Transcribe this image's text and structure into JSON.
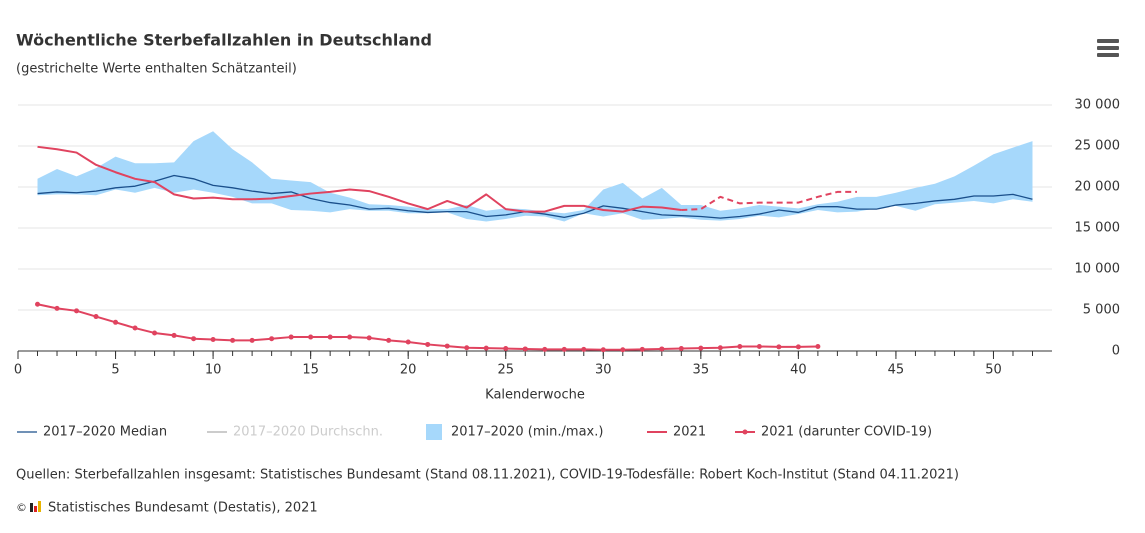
{
  "chart_data": {
    "type": "line",
    "title": "Wöchentliche Sterbefallzahlen in Deutschland",
    "subtitle": "(gestrichelte Werte enthalten Schätzanteil)",
    "xlabel": "Kalenderwoche",
    "source": "Quellen: Sterbefallzahlen insgesamt: Statistisches Bundesamt (Stand 08.11.2021), COVID-19-Todesfälle: Robert Koch-Institut (Stand 04.11.2021)",
    "copyright_symbol": "©",
    "copyright": "Statistisches Bundesamt (Destatis), 2021",
    "x": [
      1,
      2,
      3,
      4,
      5,
      6,
      7,
      8,
      9,
      10,
      11,
      12,
      13,
      14,
      15,
      16,
      17,
      18,
      19,
      20,
      21,
      22,
      23,
      24,
      25,
      26,
      27,
      28,
      29,
      30,
      31,
      32,
      33,
      34,
      35,
      36,
      37,
      38,
      39,
      40,
      41,
      42,
      43,
      44,
      45,
      46,
      47,
      48,
      49,
      50,
      51,
      52
    ],
    "xlim": [
      0,
      53
    ],
    "xticks": [
      0,
      5,
      10,
      15,
      20,
      25,
      30,
      35,
      40,
      45,
      50
    ],
    "ylim": [
      0,
      30000
    ],
    "yticks": [
      0,
      {
        "value": 5000,
        "label": "5 000"
      },
      {
        "value": 10000,
        "label": "10 000"
      },
      {
        "value": 15000,
        "label": "15 000"
      },
      {
        "value": 20000,
        "label": "20 000"
      },
      {
        "value": 25000,
        "label": "25 000"
      },
      {
        "value": 30000,
        "label": "30 000"
      }
    ],
    "grid": true,
    "series": [
      {
        "name": "2017–2020 Median",
        "color": "#1a4f8b",
        "kind": "line",
        "values": [
          19200,
          19400,
          19300,
          19500,
          19900,
          20100,
          20700,
          21400,
          21000,
          20200,
          19900,
          19500,
          19200,
          19400,
          18600,
          18100,
          17800,
          17300,
          17400,
          17100,
          16900,
          17000,
          17000,
          16400,
          16600,
          17000,
          16700,
          16300,
          16800,
          17700,
          17400,
          17000,
          16600,
          16500,
          16400,
          16200,
          16400,
          16700,
          17200,
          16900,
          17600,
          17600,
          17300,
          17300,
          17800,
          18000,
          18300,
          18500,
          18900,
          18900,
          19100,
          18500
        ]
      },
      {
        "name": "2017–2020 Durchschn.",
        "color": "#cccccc",
        "visible": false
      },
      {
        "name": "2017–2020 (min./max.)",
        "color": "#a6d8fb",
        "kind": "range",
        "high": [
          21000,
          22200,
          21300,
          22300,
          23700,
          22900,
          22900,
          23000,
          25600,
          26800,
          24600,
          23000,
          21000,
          20800,
          20600,
          19300,
          18700,
          17900,
          17800,
          17600,
          17300,
          17300,
          17800,
          17100,
          17400,
          17300,
          17000,
          16800,
          17200,
          19700,
          20500,
          18600,
          19900,
          17800,
          17800,
          17100,
          17400,
          17800,
          17600,
          17400,
          17900,
          18200,
          18800,
          18800,
          19300,
          19900,
          20400,
          21300,
          22600,
          24000,
          24800,
          25600
        ],
        "low": [
          19000,
          19100,
          19100,
          19000,
          19700,
          19300,
          19900,
          19300,
          19700,
          19300,
          18800,
          18000,
          18000,
          17200,
          17100,
          16900,
          17300,
          17100,
          17100,
          16800,
          16800,
          16900,
          16100,
          15800,
          16100,
          16500,
          16400,
          15800,
          16800,
          16400,
          16800,
          16000,
          16100,
          16300,
          16000,
          15900,
          16100,
          16500,
          16300,
          16700,
          17200,
          16900,
          17000,
          17400,
          17700,
          17100,
          17900,
          18100,
          18300,
          18000,
          18500,
          18200
        ]
      },
      {
        "name": "2021",
        "color": "#e0435f",
        "kind": "line",
        "dashed_from_x": 34,
        "values": [
          24900,
          24600,
          24200,
          22700,
          21800,
          21000,
          20600,
          19100,
          18600,
          18700,
          18500,
          18500,
          18600,
          18900,
          19200,
          19400,
          19700,
          19500,
          18800,
          18000,
          17300,
          18300,
          17500,
          19100,
          17300,
          17000,
          17000,
          17700,
          17700,
          17200,
          17000,
          17600,
          17500,
          17200,
          17300,
          18800,
          18000,
          18100,
          18100,
          18100,
          18800,
          19400,
          19400,
          null,
          null,
          null,
          null,
          null,
          null,
          null,
          null,
          null
        ]
      },
      {
        "name": "2021 (darunter COVID-19)",
        "color": "#e0435f",
        "kind": "line",
        "markers": true,
        "values": [
          5700,
          5200,
          4900,
          4200,
          3500,
          2800,
          2200,
          1900,
          1500,
          1400,
          1300,
          1300,
          1500,
          1700,
          1700,
          1700,
          1700,
          1600,
          1300,
          1100,
          800,
          600,
          400,
          350,
          300,
          250,
          200,
          200,
          200,
          150,
          150,
          200,
          250,
          300,
          350,
          400,
          550,
          550,
          500,
          500,
          550,
          null,
          null,
          null,
          null,
          null,
          null,
          null,
          null,
          null,
          null,
          null
        ]
      }
    ]
  }
}
